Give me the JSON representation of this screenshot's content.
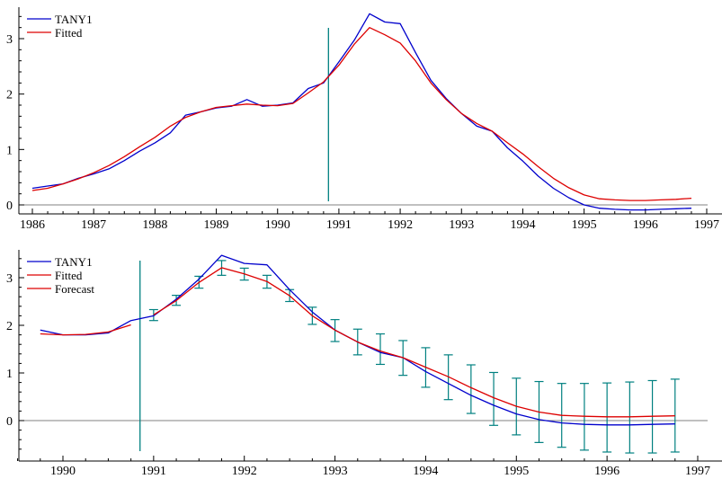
{
  "chart_data": [
    {
      "type": "line",
      "legend": [
        "TANY1",
        "Fitted"
      ],
      "legend_position": "top-left",
      "xlim": [
        1986,
        1997
      ],
      "ylim": [
        -0.1,
        3.55
      ],
      "x_ticks": [
        1986,
        1987,
        1988,
        1989,
        1990,
        1991,
        1992,
        1993,
        1994,
        1995,
        1996,
        1997
      ],
      "y_ticks": [
        0,
        1,
        2,
        3
      ],
      "forecast_start_marker": 1990.83,
      "colors": {
        "TANY1": "#0000cc",
        "Fitted": "#dd0000",
        "marker": "#008080",
        "axis": "#000000",
        "zero_line": "#808080"
      },
      "series": [
        {
          "name": "TANY1",
          "x": [
            1986.0,
            1986.25,
            1986.5,
            1986.75,
            1987.0,
            1987.25,
            1987.5,
            1987.75,
            1988.0,
            1988.25,
            1988.5,
            1988.75,
            1989.0,
            1989.25,
            1989.5,
            1989.75,
            1990.0,
            1990.25,
            1990.5,
            1990.75,
            1991.0,
            1991.25,
            1991.5,
            1991.75,
            1992.0,
            1992.25,
            1992.5,
            1992.75,
            1993.0,
            1993.25,
            1993.5,
            1993.75,
            1994.0,
            1994.25,
            1994.5,
            1994.75,
            1995.0,
            1995.25,
            1995.5,
            1995.75,
            1996.0,
            1996.25,
            1996.5,
            1996.75
          ],
          "y": [
            0.3,
            0.34,
            0.38,
            0.48,
            0.56,
            0.65,
            0.8,
            0.97,
            1.12,
            1.3,
            1.62,
            1.68,
            1.75,
            1.78,
            1.9,
            1.78,
            1.8,
            1.84,
            2.1,
            2.2,
            2.58,
            2.97,
            3.45,
            3.3,
            3.27,
            2.75,
            2.25,
            1.92,
            1.65,
            1.42,
            1.33,
            1.03,
            0.79,
            0.52,
            0.3,
            0.13,
            0.0,
            -0.06,
            -0.08,
            -0.09,
            -0.09,
            -0.08,
            -0.07,
            -0.06
          ]
        },
        {
          "name": "Fitted",
          "x": [
            1986.0,
            1986.25,
            1986.5,
            1986.75,
            1987.0,
            1987.25,
            1987.5,
            1987.75,
            1988.0,
            1988.25,
            1988.5,
            1988.75,
            1989.0,
            1989.25,
            1989.5,
            1989.75,
            1990.0,
            1990.25,
            1990.5,
            1990.75,
            1991.0,
            1991.25,
            1991.5,
            1991.75,
            1992.0,
            1992.25,
            1992.5,
            1992.75,
            1993.0,
            1993.25,
            1993.5,
            1993.75,
            1994.0,
            1994.25,
            1994.5,
            1994.75,
            1995.0,
            1995.25,
            1995.5,
            1995.75,
            1996.0,
            1996.25,
            1996.5,
            1996.75
          ],
          "y": [
            0.26,
            0.3,
            0.38,
            0.47,
            0.58,
            0.71,
            0.87,
            1.05,
            1.22,
            1.42,
            1.58,
            1.68,
            1.76,
            1.79,
            1.82,
            1.8,
            1.79,
            1.83,
            2.02,
            2.22,
            2.52,
            2.9,
            3.2,
            3.07,
            2.92,
            2.6,
            2.2,
            1.9,
            1.65,
            1.47,
            1.33,
            1.12,
            0.92,
            0.69,
            0.48,
            0.31,
            0.18,
            0.11,
            0.09,
            0.08,
            0.08,
            0.09,
            0.1,
            0.12
          ]
        }
      ]
    },
    {
      "type": "line",
      "legend": [
        "TANY1",
        "Fitted",
        "Forecast"
      ],
      "legend_position": "top-left",
      "xlim": [
        1989.5,
        1997.2
      ],
      "ylim": [
        -0.72,
        3.55
      ],
      "x_ticks": [
        1990,
        1991,
        1992,
        1993,
        1994,
        1995,
        1996,
        1997
      ],
      "y_ticks": [
        0,
        1,
        2,
        3
      ],
      "forecast_start_marker": 1990.85,
      "colors": {
        "TANY1": "#0000cc",
        "Fitted": "#dd0000",
        "Forecast": "#dd0000",
        "error_bars": "#008080",
        "marker": "#008080",
        "axis": "#000000",
        "zero_line": "#808080"
      },
      "series": [
        {
          "name": "TANY1",
          "x": [
            1989.75,
            1990.0,
            1990.25,
            1990.5,
            1990.75,
            1991.0,
            1991.25,
            1991.5,
            1991.75,
            1992.0,
            1992.25,
            1992.5,
            1992.75,
            1993.0,
            1993.25,
            1993.5,
            1993.75,
            1994.0,
            1994.25,
            1994.5,
            1994.75,
            1995.0,
            1995.25,
            1995.5,
            1995.75,
            1996.0,
            1996.25,
            1996.5,
            1996.75
          ],
          "y": [
            1.9,
            1.8,
            1.8,
            1.84,
            2.1,
            2.2,
            2.55,
            2.97,
            3.47,
            3.3,
            3.27,
            2.75,
            2.28,
            1.9,
            1.65,
            1.43,
            1.32,
            1.03,
            0.78,
            0.53,
            0.32,
            0.14,
            0.02,
            -0.05,
            -0.08,
            -0.09,
            -0.09,
            -0.08,
            -0.07
          ]
        },
        {
          "name": "Fitted",
          "x": [
            1989.75,
            1990.0,
            1990.25,
            1990.5,
            1990.75
          ],
          "y": [
            1.82,
            1.8,
            1.81,
            1.86,
            2.01
          ]
        },
        {
          "name": "Forecast",
          "x": [
            1991.0,
            1991.25,
            1991.5,
            1991.75,
            1992.0,
            1992.25,
            1992.5,
            1992.75,
            1993.0,
            1993.25,
            1993.5,
            1993.75,
            1994.0,
            1994.25,
            1994.5,
            1994.75,
            1995.0,
            1995.25,
            1995.5,
            1995.75,
            1996.0,
            1996.25,
            1996.5,
            1996.75
          ],
          "y": [
            2.22,
            2.52,
            2.9,
            3.21,
            3.08,
            2.92,
            2.62,
            2.2,
            1.9,
            1.65,
            1.46,
            1.32,
            1.12,
            0.92,
            0.69,
            0.48,
            0.3,
            0.18,
            0.11,
            0.09,
            0.08,
            0.08,
            0.09,
            0.1
          ],
          "error_low": [
            2.1,
            2.42,
            2.78,
            3.05,
            2.95,
            2.78,
            2.5,
            2.02,
            1.66,
            1.38,
            1.18,
            0.95,
            0.7,
            0.44,
            0.15,
            -0.1,
            -0.3,
            -0.46,
            -0.56,
            -0.62,
            -0.66,
            -0.68,
            -0.68,
            -0.66
          ],
          "error_high": [
            2.33,
            2.63,
            3.03,
            3.36,
            3.2,
            3.05,
            2.75,
            2.38,
            2.12,
            1.92,
            1.82,
            1.68,
            1.53,
            1.38,
            1.17,
            1.01,
            0.89,
            0.82,
            0.78,
            0.78,
            0.79,
            0.81,
            0.84,
            0.87
          ]
        }
      ]
    }
  ]
}
